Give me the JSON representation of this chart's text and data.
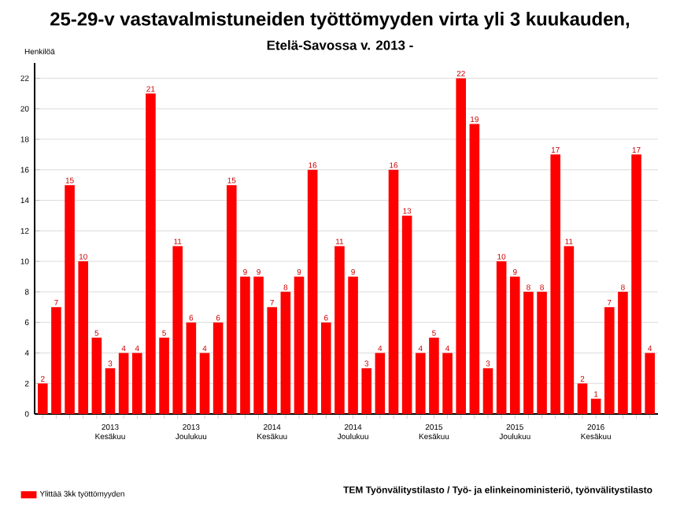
{
  "chart_data": {
    "type": "bar",
    "title": "25-29-v vastavalmistuneiden työttömyyden virta yli 3 kuukauden,",
    "subtitle": "Etelä-Savossa v. 2013 -",
    "ylabel": "Henkilöä",
    "categories": [
      null,
      null,
      null,
      null,
      null,
      "2013 Kesäkuu",
      null,
      null,
      null,
      null,
      null,
      "2013 Joulukuu",
      null,
      null,
      null,
      null,
      null,
      "2014 Kesäkuu",
      null,
      null,
      null,
      null,
      null,
      "2014 Joulukuu",
      null,
      null,
      null,
      null,
      null,
      "2015 Kesäkuu",
      null,
      null,
      null,
      null,
      null,
      "2015 Joulukuu",
      null,
      null,
      null,
      null,
      null,
      "2016 Kesäkuu",
      null,
      null,
      null,
      null
    ],
    "series": [
      {
        "name": "Ylittää 3kk työttömyyden",
        "color": "#ff0000",
        "values": [
          2,
          7,
          15,
          10,
          5,
          3,
          4,
          4,
          21,
          5,
          11,
          6,
          4,
          6,
          15,
          9,
          9,
          7,
          8,
          9,
          16,
          6,
          11,
          9,
          3,
          4,
          16,
          13,
          4,
          5,
          4,
          22,
          19,
          3,
          10,
          9,
          8,
          8,
          17,
          11,
          2,
          1,
          7,
          8,
          17,
          4
        ]
      }
    ],
    "ylim": [
      0,
      23
    ],
    "yticks": [
      0,
      2,
      4,
      6,
      8,
      10,
      12,
      14,
      16,
      18,
      20,
      22
    ],
    "grid": "y",
    "data_labels": true,
    "legend": "bottom left",
    "annotations": [
      "TEM Työnvälitystilasto / Työ- ja elinkeinoministeriö, työnvälitystilasto"
    ]
  }
}
